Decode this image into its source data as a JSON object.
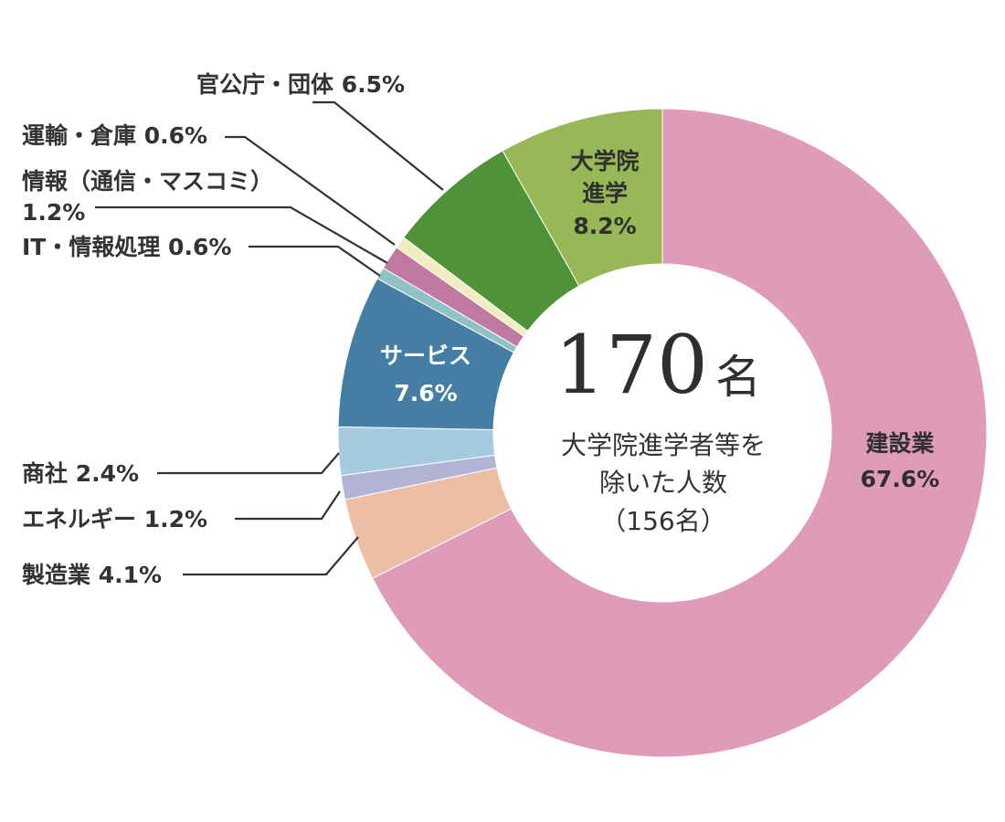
{
  "chart_data": {
    "type": "donut",
    "title": "",
    "total_label": "170",
    "total_unit": "名",
    "center_caption": [
      "大学院進学者等を",
      "除いた人数",
      "（156名）"
    ],
    "slices": [
      {
        "name": "建設業",
        "value": 67.6,
        "display": "67.6%",
        "color": "#de9cb9",
        "label": "建設業",
        "label_pct": "67.6%"
      },
      {
        "name": "製造業",
        "value": 4.1,
        "display": "4.1%",
        "color": "#ecbea6",
        "label": "製造業 4.1%"
      },
      {
        "name": "エネルギー",
        "value": 1.2,
        "display": "1.2%",
        "color": "#b3b3d6",
        "label": "エネルギー 1.2%"
      },
      {
        "name": "商社",
        "value": 2.4,
        "display": "2.4%",
        "color": "#a6cbe1",
        "label": "商社 2.4%"
      },
      {
        "name": "サービス",
        "value": 7.6,
        "display": "7.6%",
        "color": "#447ea4",
        "label": "サービス",
        "label_pct": "7.6%"
      },
      {
        "name": "IT・情報処理",
        "value": 0.6,
        "display": "0.6%",
        "color": "#8fc2c5",
        "label": "IT・情報処理 0.6%"
      },
      {
        "name": "情報（通信・マスコミ）",
        "value": 1.2,
        "display": "1.2%",
        "color": "#c07aa0",
        "label": "情報（通信・マスコミ）",
        "label_pct": "1.2%"
      },
      {
        "name": "運輸・倉庫",
        "value": 0.6,
        "display": "0.6%",
        "color": "#f1edc0",
        "label": "運輸・倉庫 0.6%"
      },
      {
        "name": "官公庁・団体",
        "value": 6.5,
        "display": "6.5%",
        "color": "#4f9237",
        "label": "官公庁・団体 6.5%"
      },
      {
        "name": "大学院進学",
        "value": 8.2,
        "display": "8.2%",
        "color": "#98b857",
        "label": "大学院",
        "label2": "進学",
        "label_pct": "8.2%"
      }
    ],
    "legend": "none",
    "grid": false
  }
}
